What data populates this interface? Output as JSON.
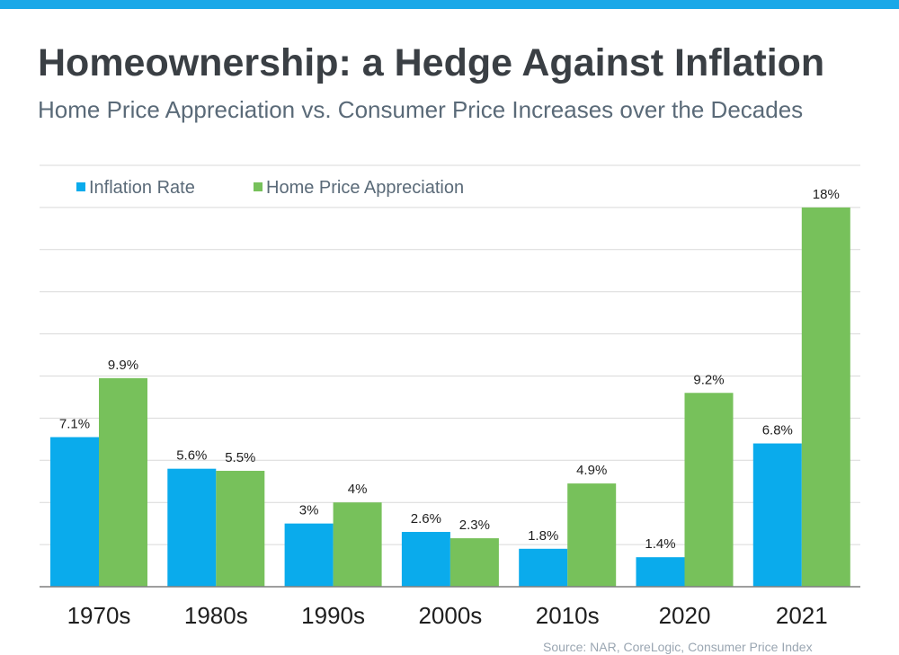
{
  "header": {
    "title": "Homeownership: a Hedge Against Inflation",
    "subtitle": "Home Price Appreciation vs. Consumer Price Increases over the Decades"
  },
  "footer": {
    "source": "Source: NAR, CoreLogic, Consumer Price Index"
  },
  "colors": {
    "top_bar": "#1aa8e8",
    "subtitle": "#5a6a78",
    "inflation": "#0aabec",
    "appreciation": "#77c15b",
    "grid": "#d9d9d9",
    "axis": "#7f7f7f"
  },
  "chart_data": {
    "type": "bar",
    "categories": [
      "1970s",
      "1980s",
      "1990s",
      "2000s",
      "2010s",
      "2020",
      "2021"
    ],
    "series": [
      {
        "name": "Inflation Rate",
        "values": [
          7.1,
          5.6,
          3,
          2.6,
          1.8,
          1.4,
          6.8
        ],
        "labels": [
          "7.1%",
          "5.6%",
          "3%",
          "2.6%",
          "1.8%",
          "1.4%",
          "6.8%"
        ]
      },
      {
        "name": "Home Price Appreciation",
        "values": [
          9.9,
          5.5,
          4,
          2.3,
          4.9,
          9.2,
          18
        ],
        "labels": [
          "9.9%",
          "5.5%",
          "4%",
          "2.3%",
          "4.9%",
          "9.2%",
          "18%"
        ]
      }
    ],
    "ylim": [
      0,
      20
    ],
    "grid": true,
    "legend": "top-left"
  }
}
